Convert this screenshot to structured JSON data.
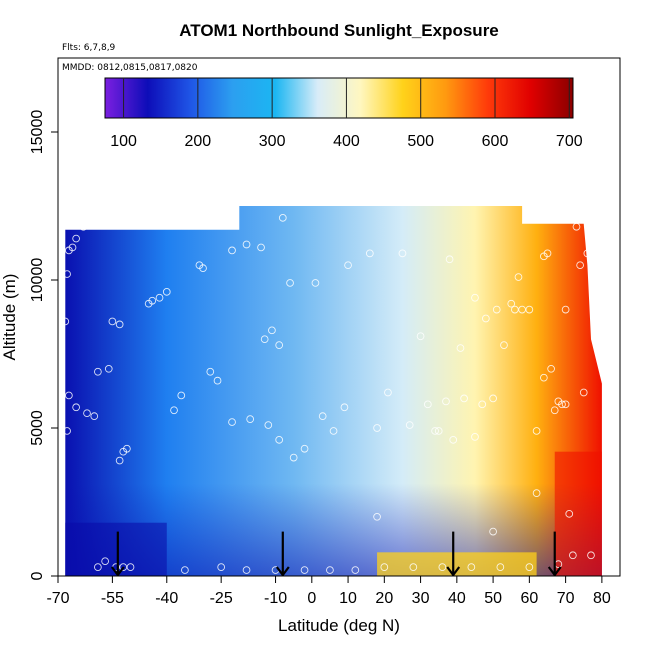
{
  "chart_data": {
    "type": "heatmap",
    "title": "ATOM1 Northbound Sunlight_Exposure",
    "flights_label": "Flts: 6,7,8,9",
    "dates_label": "MMDD: 0812,0815,0817,0820",
    "xlabel": "Latitude (deg N)",
    "ylabel": "Altitude (m)",
    "xlim": [
      -70,
      85
    ],
    "ylim": [
      0,
      17500
    ],
    "x_ticks": [
      -70,
      -55,
      -40,
      -25,
      -10,
      0,
      10,
      20,
      30,
      40,
      50,
      60,
      70,
      80
    ],
    "y_ticks": [
      0,
      5000,
      10000,
      15000
    ],
    "colorbar": {
      "min": 75,
      "max": 705,
      "ticks": [
        100,
        200,
        300,
        400,
        500,
        600,
        700
      ],
      "colors": [
        "#7b1fe0",
        "#0d0db8",
        "#1f55e6",
        "#2c9ff0",
        "#1bb6f2",
        "#d8ecf8",
        "#fff7c0",
        "#ffd21a",
        "#ff9a10",
        "#ff3a0a",
        "#e00000",
        "#8b0000"
      ]
    },
    "field_colors": {
      "low": "#0a10b0",
      "mid_low": "#1f7ff0",
      "mid": "#d4ecf8",
      "mid_high": "#fff4b0",
      "high": "#ffb010",
      "max": "#f01000"
    },
    "field_extent": {
      "lat_min": -68,
      "lat_max": 80,
      "alt_south_top": 11700,
      "lat_high_top_min": -20,
      "lat_high_top_max": 58,
      "alt_high_top": 12500
    },
    "grid": false,
    "arrows_at_lat": [
      -53.5,
      -8,
      39,
      67
    ],
    "sample_points": [
      [
        -67.5,
        10200
      ],
      [
        -67,
        11000
      ],
      [
        -66,
        11100
      ],
      [
        -65,
        11400
      ],
      [
        -63,
        11800
      ],
      [
        -68,
        8600
      ],
      [
        -67,
        6100
      ],
      [
        -65,
        5700
      ],
      [
        -62,
        5500
      ],
      [
        -60,
        5400
      ],
      [
        -59,
        6900
      ],
      [
        -67.5,
        4900
      ],
      [
        -56,
        7000
      ],
      [
        -55,
        8600
      ],
      [
        -53,
        8500
      ],
      [
        -52,
        4200
      ],
      [
        -51,
        4300
      ],
      [
        -53,
        3900
      ],
      [
        -59,
        300
      ],
      [
        -57,
        500
      ],
      [
        -54,
        300
      ],
      [
        -52,
        300
      ],
      [
        -50,
        300
      ],
      [
        -45,
        9200
      ],
      [
        -44,
        9300
      ],
      [
        -42,
        9400
      ],
      [
        -40,
        9600
      ],
      [
        -38,
        5600
      ],
      [
        -36,
        6100
      ],
      [
        -31,
        10500
      ],
      [
        -30,
        10400
      ],
      [
        -28,
        6900
      ],
      [
        -26,
        6600
      ],
      [
        -22,
        5200
      ],
      [
        -22,
        11000
      ],
      [
        -18,
        11200
      ],
      [
        -14,
        11100
      ],
      [
        -11,
        8300
      ],
      [
        -13,
        8000
      ],
      [
        -9,
        7800
      ],
      [
        -6,
        9900
      ],
      [
        -8,
        12100
      ],
      [
        1,
        9900
      ],
      [
        -17,
        5300
      ],
      [
        -12,
        5100
      ],
      [
        -9,
        4600
      ],
      [
        -5,
        4000
      ],
      [
        -2,
        4300
      ],
      [
        3,
        5400
      ],
      [
        6,
        4900
      ],
      [
        9,
        5700
      ],
      [
        10,
        10500
      ],
      [
        16,
        10900
      ],
      [
        18,
        5000
      ],
      [
        21,
        6200
      ],
      [
        25,
        10900
      ],
      [
        27,
        5100
      ],
      [
        30,
        8100
      ],
      [
        32,
        5800
      ],
      [
        35,
        4900
      ],
      [
        37,
        5900
      ],
      [
        38,
        10700
      ],
      [
        39,
        4600
      ],
      [
        41,
        7700
      ],
      [
        42,
        6000
      ],
      [
        45,
        9400
      ],
      [
        47,
        5800
      ],
      [
        48,
        8700
      ],
      [
        50,
        6000
      ],
      [
        50,
        1500
      ],
      [
        51,
        9000
      ],
      [
        53,
        7800
      ],
      [
        55,
        9200
      ],
      [
        56,
        9000
      ],
      [
        57,
        10100
      ],
      [
        58,
        9000
      ],
      [
        60,
        9000
      ],
      [
        62,
        4900
      ],
      [
        62,
        2800
      ],
      [
        64,
        10800
      ],
      [
        64,
        6700
      ],
      [
        65,
        10900
      ],
      [
        66,
        7000
      ],
      [
        67,
        5600
      ],
      [
        68,
        5900
      ],
      [
        69,
        5800
      ],
      [
        70,
        5800
      ],
      [
        70,
        9000
      ],
      [
        71,
        2100
      ],
      [
        72,
        700
      ],
      [
        73,
        11800
      ],
      [
        74,
        10500
      ],
      [
        75,
        6200
      ],
      [
        76,
        10900
      ],
      [
        77,
        700
      ],
      [
        -10,
        200
      ],
      [
        -2,
        200
      ],
      [
        5,
        200
      ],
      [
        12,
        200
      ],
      [
        20,
        300
      ],
      [
        28,
        300
      ],
      [
        36,
        300
      ],
      [
        44,
        300
      ],
      [
        52,
        300
      ],
      [
        60,
        300
      ],
      [
        68,
        400
      ],
      [
        -35,
        200
      ],
      [
        -25,
        300
      ],
      [
        -18,
        200
      ],
      [
        18,
        2000
      ],
      [
        45,
        4700
      ],
      [
        34,
        4900
      ]
    ]
  }
}
